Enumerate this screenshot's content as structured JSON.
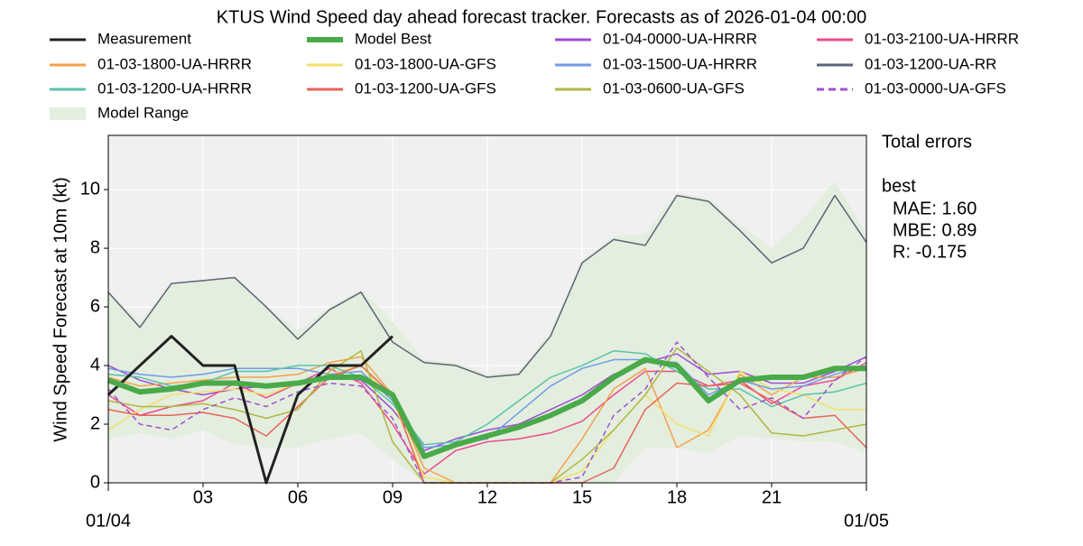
{
  "chart_data": {
    "type": "line",
    "title": "KTUS Wind Speed day ahead forecast tracker. Forecasts as of 2026-01-04 00:00",
    "y_label": "Wind Speed Forecast at 10m (kt)",
    "x": [
      0,
      1,
      2,
      3,
      4,
      5,
      6,
      7,
      8,
      9,
      10,
      11,
      12,
      13,
      14,
      15,
      16,
      17,
      18,
      19,
      20,
      21,
      22,
      23,
      24
    ],
    "xlim": [
      0,
      24
    ],
    "xticks": [
      {
        "value": 3,
        "label": "03"
      },
      {
        "value": 6,
        "label": "06"
      },
      {
        "value": 9,
        "label": "09"
      },
      {
        "value": 12,
        "label": "12"
      },
      {
        "value": 15,
        "label": "15"
      },
      {
        "value": 18,
        "label": "18"
      },
      {
        "value": 21,
        "label": "21"
      }
    ],
    "date_ticks": [
      {
        "value": 0,
        "label": "01/04"
      },
      {
        "value": 24,
        "label": "01/05"
      }
    ],
    "ylim": [
      0,
      11.85
    ],
    "yticks": [
      0,
      2,
      4,
      6,
      8,
      10
    ],
    "grid": true,
    "series": [
      {
        "name": "Measurement",
        "color": "#222222",
        "width": 3,
        "values": [
          3,
          4,
          5,
          4,
          4,
          0,
          3,
          4,
          4,
          5,
          null,
          null,
          null,
          null,
          null,
          null,
          null,
          null,
          null,
          null,
          null,
          null,
          null,
          null,
          null
        ]
      },
      {
        "name": "Model Best",
        "color": "#4aaa4a",
        "width": 6,
        "values": [
          3.5,
          3.1,
          3.2,
          3.4,
          3.4,
          3.3,
          3.4,
          3.6,
          3.6,
          3.0,
          0.9,
          1.3,
          1.6,
          1.9,
          2.3,
          2.8,
          3.6,
          4.2,
          4.0,
          2.8,
          3.5,
          3.6,
          3.6,
          3.9,
          3.9
        ]
      },
      {
        "name": "01-04-0000-UA-HRRR",
        "color": "#9f4bd6",
        "width": 1.5,
        "values": [
          4,
          3.5,
          3.2,
          3.0,
          3.2,
          3.3,
          3.4,
          3.6,
          3.5,
          2.5,
          1.1,
          1.5,
          1.8,
          2.0,
          2.5,
          3.0,
          3.7,
          4.1,
          4.4,
          3.7,
          3.8,
          3.4,
          3.4,
          3.8,
          4.3
        ]
      },
      {
        "name": "01-03-2100-UA-HRRR",
        "color": "#ec4b8c",
        "width": 1.5,
        "values": [
          3.0,
          2.3,
          2.6,
          2.8,
          3.4,
          2.9,
          3.4,
          3.9,
          3.4,
          2.0,
          0.3,
          1.1,
          1.4,
          1.5,
          1.7,
          2.1,
          3.0,
          3.8,
          3.8,
          3.3,
          3.5,
          2.7,
          3.3,
          3.5,
          4.1
        ]
      },
      {
        "name": "01-03-1800-UA-HRRR",
        "color": "#f5a04a",
        "width": 1.5,
        "values": [
          3.6,
          3.3,
          3.4,
          3.5,
          3.6,
          3.6,
          3.7,
          4.1,
          4.3,
          3.0,
          0.5,
          0,
          0,
          0,
          0,
          1.5,
          3.2,
          3.9,
          1.2,
          1.8,
          3.7,
          3.0,
          3.6,
          3.6,
          3.9
        ]
      },
      {
        "name": "01-03-1800-UA-GFS",
        "color": "#f2e06a",
        "width": 1.5,
        "values": [
          1.8,
          2.5,
          3.0,
          3.1,
          3.2,
          3.0,
          3.4,
          3.7,
          4.0,
          2.8,
          0.2,
          0,
          0,
          0,
          0,
          0.4,
          1.8,
          3.0,
          2.0,
          1.6,
          3.8,
          3.2,
          3.0,
          2.5,
          2.5
        ]
      },
      {
        "name": "01-03-1500-UA-HRRR",
        "color": "#6f9ae8",
        "width": 1.5,
        "values": [
          3.9,
          3.7,
          3.6,
          3.7,
          3.9,
          3.9,
          3.9,
          3.7,
          3.8,
          2.8,
          1.2,
          1.3,
          1.5,
          2.4,
          3.3,
          3.9,
          4.2,
          4.2,
          4.1,
          3.0,
          3.5,
          3.2,
          3.3,
          3.7,
          4.0
        ]
      },
      {
        "name": "01-03-1200-UA-RR",
        "color": "#5e6378",
        "width": 1.5,
        "values": [
          6.5,
          5.3,
          6.8,
          6.9,
          7.0,
          6.0,
          4.9,
          5.9,
          6.5,
          4.8,
          4.1,
          4.0,
          3.6,
          3.7,
          5.0,
          7.5,
          8.3,
          8.1,
          9.8,
          9.6,
          8.6,
          7.5,
          8.0,
          9.8,
          8.2
        ]
      },
      {
        "name": "01-03-1200-UA-HRRR",
        "color": "#5bc2aa",
        "width": 1.5,
        "values": [
          3.7,
          3.6,
          3.3,
          3.4,
          3.8,
          3.8,
          4.0,
          4.0,
          3.6,
          2.7,
          1.3,
          1.4,
          2.0,
          2.8,
          3.6,
          4.0,
          4.5,
          4.4,
          3.8,
          3.2,
          3.2,
          2.6,
          3.0,
          3.1,
          3.4
        ]
      },
      {
        "name": "01-03-1200-UA-GFS",
        "color": "#e8635a",
        "width": 1.5,
        "values": [
          2.5,
          2.3,
          2.3,
          2.4,
          2.2,
          1.6,
          2.6,
          3.6,
          4.0,
          3.0,
          0,
          0,
          0,
          0,
          0,
          0,
          0.5,
          2.5,
          3.4,
          3.3,
          3.4,
          2.8,
          2.2,
          2.3,
          1.2
        ]
      },
      {
        "name": "01-03-0600-UA-GFS",
        "color": "#b2b644",
        "width": 1.5,
        "values": [
          2.8,
          2.6,
          2.6,
          2.7,
          2.5,
          2.2,
          2.5,
          3.8,
          4.5,
          1.4,
          0,
          0,
          0,
          0,
          0,
          0.8,
          1.8,
          3.0,
          4.6,
          3.8,
          3.0,
          1.7,
          1.6,
          1.8,
          2.0
        ]
      },
      {
        "name": "01-03-0000-UA-GFS",
        "color": "#a04fd1",
        "width": 1.5,
        "dashed": true,
        "values": [
          3.2,
          2.0,
          1.8,
          2.5,
          2.9,
          2.6,
          3.1,
          3.4,
          3.3,
          2.2,
          0,
          0,
          0,
          0,
          0,
          0.2,
          2.3,
          3.2,
          4.8,
          3.6,
          2.5,
          2.9,
          2.2,
          3.5,
          4.3
        ]
      }
    ],
    "model_range": {
      "name": "Model Range",
      "color": "#e3eedf",
      "lower": [
        1.5,
        1.7,
        1.5,
        1.8,
        1.3,
        1.2,
        1.2,
        1.5,
        1.7,
        0.8,
        0,
        0,
        0,
        0,
        0,
        0,
        0,
        1.2,
        1.2,
        1.0,
        1.6,
        1.5,
        1.4,
        1.4,
        1.0
      ],
      "upper": [
        6.5,
        5.5,
        6.8,
        6.9,
        7.0,
        6.0,
        5.2,
        6.0,
        6.6,
        5.5,
        4.2,
        4.1,
        3.7,
        3.8,
        5.2,
        7.6,
        8.4,
        8.5,
        9.9,
        9.7,
        8.8,
        8.0,
        9.0,
        10.3,
        8.5
      ]
    },
    "annotations": [
      "Total errors",
      "best",
      "MAE: 1.60",
      "MBE: 0.89",
      "R: -0.175"
    ]
  }
}
